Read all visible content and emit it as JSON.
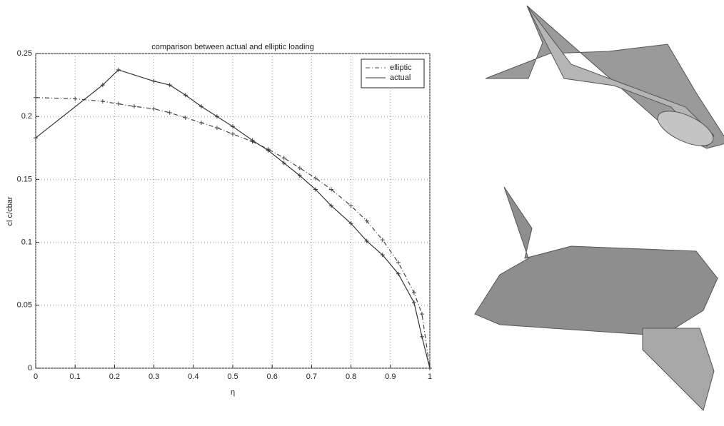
{
  "chart_data": {
    "type": "line",
    "title": "comparison between actual and elliptic loading",
    "xlabel": "η",
    "ylabel": "cl c/cbar",
    "xlim": [
      0,
      1
    ],
    "ylim": [
      0,
      0.25
    ],
    "xticks": [
      0,
      0.1,
      0.2,
      0.3,
      0.4,
      0.5,
      0.6,
      0.7,
      0.8,
      0.9,
      1
    ],
    "yticks": [
      0,
      0.05,
      0.1,
      0.15,
      0.2,
      0.25
    ],
    "grid": true,
    "legend": "upper right",
    "series": [
      {
        "name": "elliptic",
        "color": "#444444",
        "style": "dashdot",
        "x": [
          0,
          0.1,
          0.17,
          0.21,
          0.25,
          0.3,
          0.34,
          0.38,
          0.42,
          0.46,
          0.5,
          0.55,
          0.59,
          0.63,
          0.67,
          0.71,
          0.75,
          0.8,
          0.84,
          0.88,
          0.92,
          0.96,
          0.98,
          1
        ],
        "values": [
          0.215,
          0.214,
          0.212,
          0.21,
          0.208,
          0.206,
          0.203,
          0.199,
          0.195,
          0.191,
          0.186,
          0.18,
          0.174,
          0.167,
          0.159,
          0.151,
          0.142,
          0.129,
          0.117,
          0.102,
          0.084,
          0.06,
          0.043,
          0
        ]
      },
      {
        "name": "actual",
        "color": "#333333",
        "style": "solid",
        "x": [
          0,
          0.17,
          0.21,
          0.3,
          0.34,
          0.38,
          0.42,
          0.46,
          0.5,
          0.55,
          0.59,
          0.63,
          0.67,
          0.71,
          0.75,
          0.8,
          0.84,
          0.88,
          0.92,
          0.96,
          0.98,
          1
        ],
        "values": [
          0.183,
          0.225,
          0.237,
          0.228,
          0.225,
          0.217,
          0.208,
          0.2,
          0.192,
          0.181,
          0.173,
          0.163,
          0.153,
          0.142,
          0.129,
          0.115,
          0.101,
          0.09,
          0.075,
          0.052,
          0.025,
          0
        ]
      }
    ]
  }
}
